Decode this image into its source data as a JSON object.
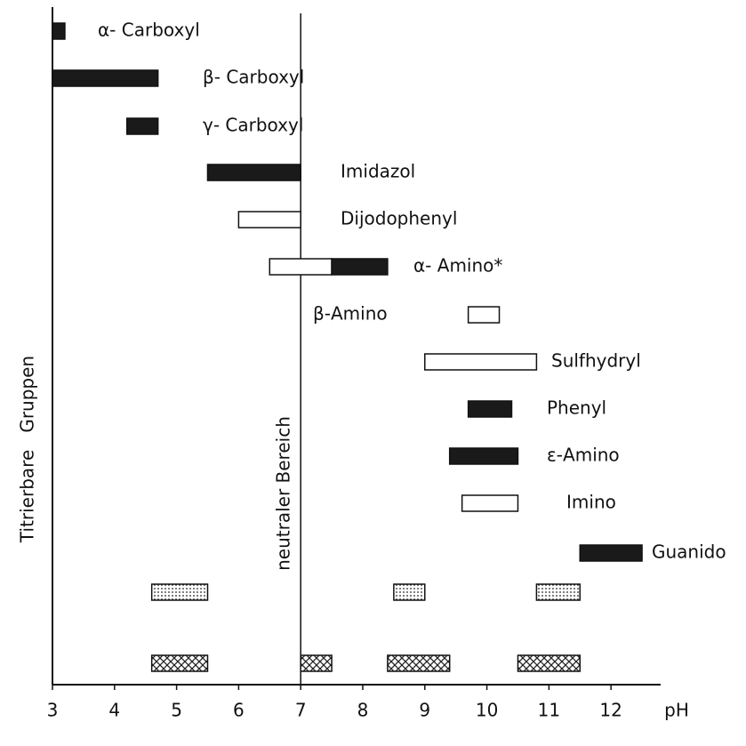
{
  "chart_data": {
    "type": "range",
    "ylabel": "Titrierbare   Gruppen",
    "xlabel": "pH",
    "xlim": [
      3,
      12.8
    ],
    "xticks": [
      3,
      4,
      5,
      6,
      7,
      8,
      9,
      10,
      11,
      12
    ],
    "neutral_line": {
      "value": 7,
      "label": "neutraler Bereich"
    },
    "rows": [
      {
        "name": "α- Carboxyl",
        "ranges": [
          {
            "start": 3.0,
            "end": 3.2,
            "fill": "solid"
          }
        ]
      },
      {
        "name": "β- Carboxyl",
        "ranges": [
          {
            "start": 3.0,
            "end": 4.7,
            "fill": "solid"
          }
        ]
      },
      {
        "name": "γ- Carboxyl",
        "ranges": [
          {
            "start": 4.2,
            "end": 4.7,
            "fill": "solid"
          }
        ]
      },
      {
        "name": "Imidazol",
        "ranges": [
          {
            "start": 5.5,
            "end": 7.0,
            "fill": "solid"
          }
        ]
      },
      {
        "name": "Dijodophenyl",
        "ranges": [
          {
            "start": 6.0,
            "end": 7.0,
            "fill": "open"
          }
        ]
      },
      {
        "name": "α- Amino*",
        "ranges": [
          {
            "start": 6.5,
            "end": 7.5,
            "fill": "open"
          },
          {
            "start": 7.5,
            "end": 8.4,
            "fill": "solid"
          }
        ]
      },
      {
        "name": "β-Amino",
        "ranges": [
          {
            "start": 9.7,
            "end": 10.2,
            "fill": "open"
          }
        ]
      },
      {
        "name": "Sulfhydryl",
        "ranges": [
          {
            "start": 9.0,
            "end": 10.8,
            "fill": "open"
          }
        ]
      },
      {
        "name": "Phenyl",
        "ranges": [
          {
            "start": 9.7,
            "end": 10.4,
            "fill": "solid"
          }
        ]
      },
      {
        "name": "ε-Amino",
        "ranges": [
          {
            "start": 9.4,
            "end": 10.5,
            "fill": "solid"
          }
        ]
      },
      {
        "name": "Imino",
        "ranges": [
          {
            "start": 9.6,
            "end": 10.5,
            "fill": "open"
          }
        ]
      },
      {
        "name": "Guanido",
        "ranges": [
          {
            "start": 11.5,
            "end": 12.5,
            "fill": "solid"
          }
        ]
      },
      {
        "name": null,
        "ranges": [
          {
            "start": 4.6,
            "end": 5.5,
            "fill": "dotted"
          },
          {
            "start": 8.5,
            "end": 9.0,
            "fill": "dotted"
          },
          {
            "start": 10.8,
            "end": 11.5,
            "fill": "dotted"
          }
        ]
      },
      {
        "name": null,
        "ranges": [
          {
            "start": 4.6,
            "end": 5.5,
            "fill": "hatched"
          },
          {
            "start": 7.0,
            "end": 7.5,
            "fill": "hatched"
          },
          {
            "start": 8.4,
            "end": 9.4,
            "fill": "hatched"
          },
          {
            "start": 10.5,
            "end": 11.5,
            "fill": "hatched"
          }
        ]
      }
    ]
  }
}
